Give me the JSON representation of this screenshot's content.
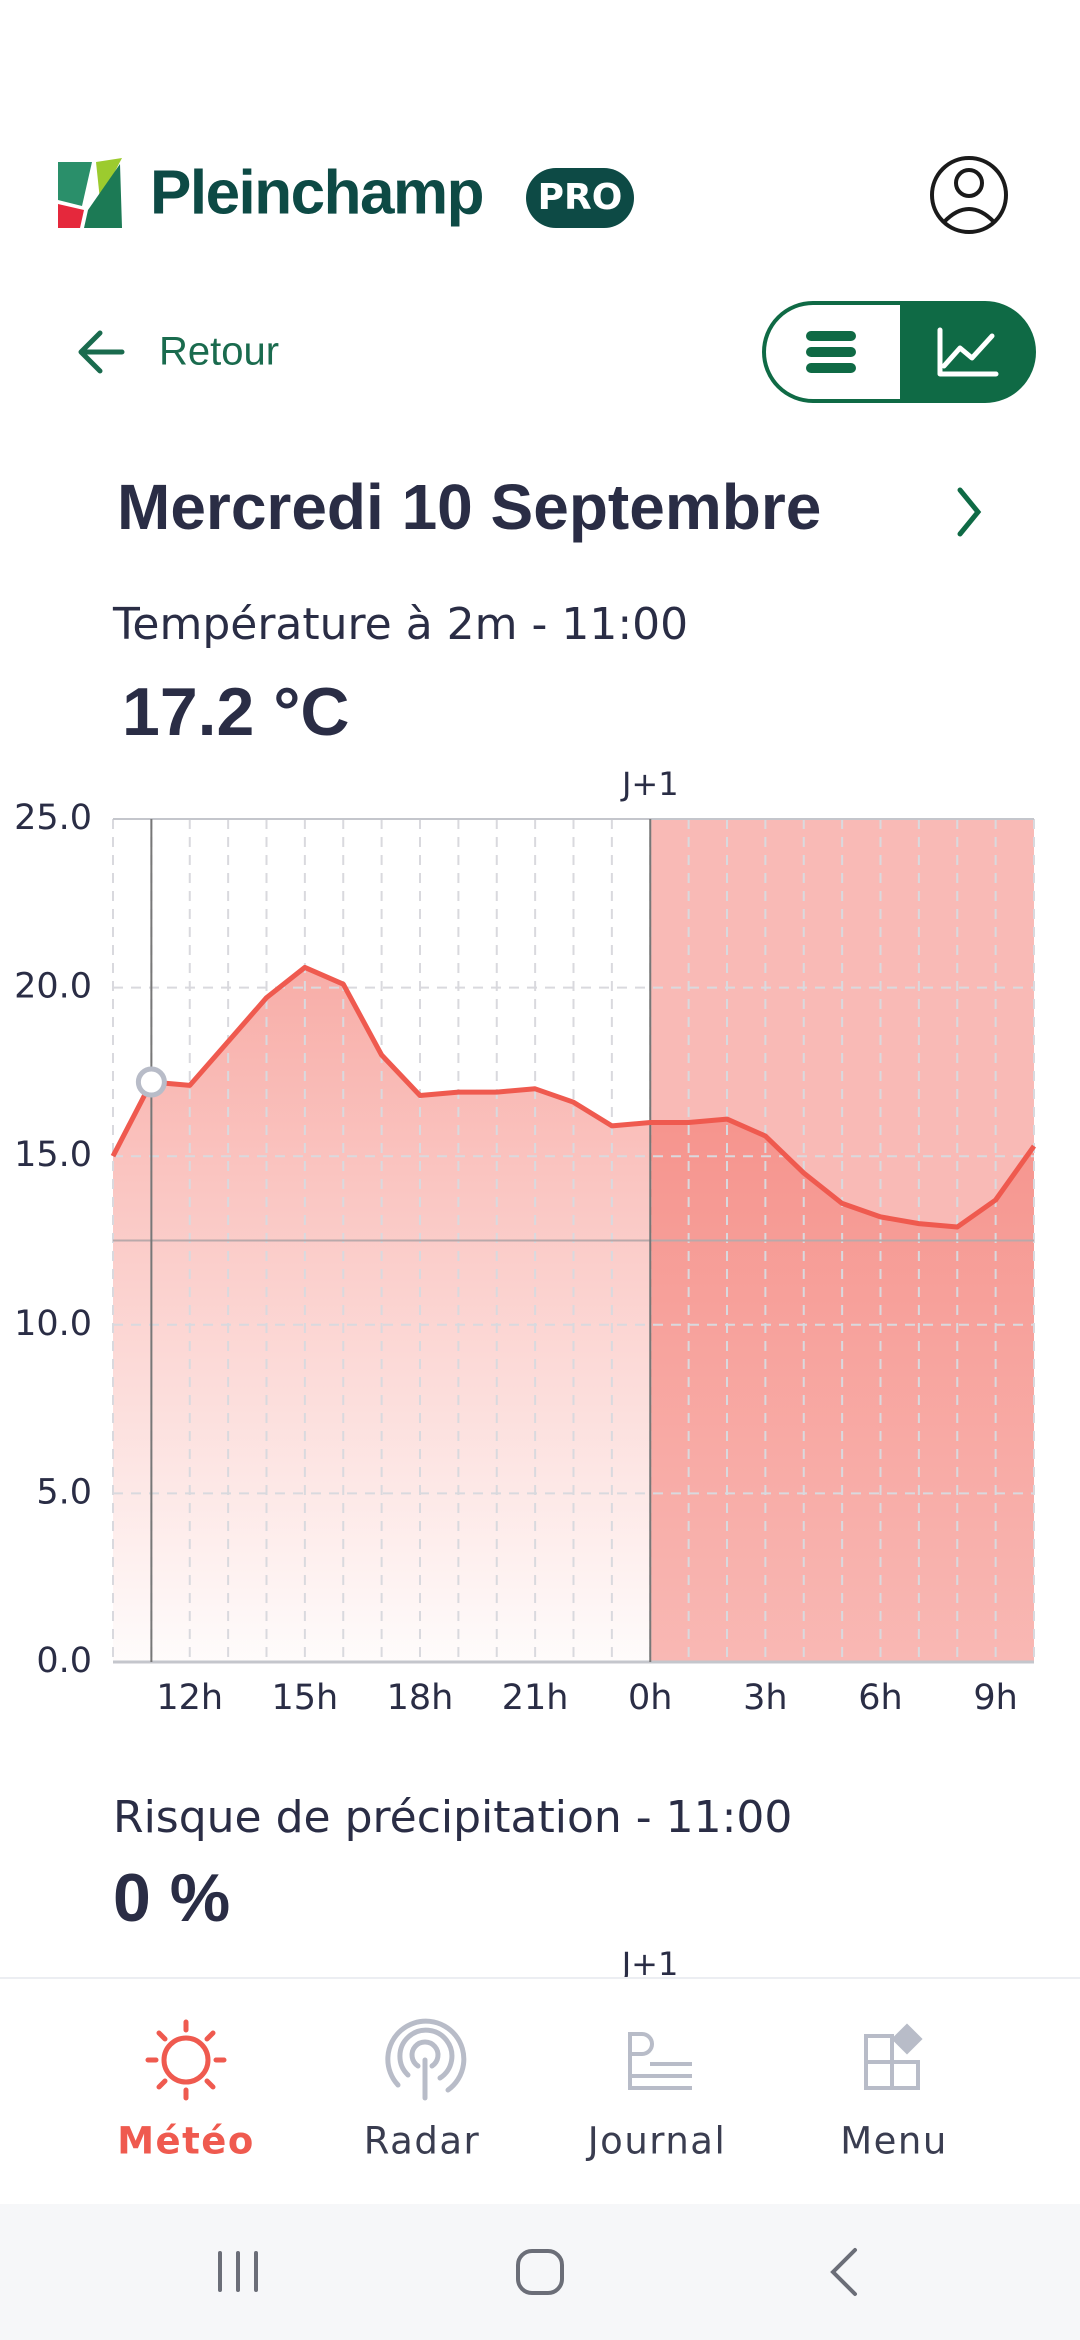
{
  "header": {
    "brand": "Pleinchamp",
    "badge": "PRO"
  },
  "nav": {
    "back": "Retour"
  },
  "date": "Mercredi 10 Septembre",
  "temperature": {
    "label": "Température à 2m - 11:00",
    "value": "17.2 °C"
  },
  "chart_data": {
    "type": "line",
    "annotation": "J+1",
    "x": [
      10,
      11,
      12,
      13,
      14,
      15,
      16,
      17,
      18,
      19,
      20,
      21,
      22,
      23,
      24,
      25,
      26,
      27,
      28,
      29,
      30,
      31,
      32,
      33,
      34
    ],
    "series": [
      {
        "color": "#ef5a4f",
        "values": [
          15.0,
          17.2,
          17.1,
          18.4,
          19.7,
          20.6,
          20.1,
          18.0,
          16.8,
          16.9,
          16.9,
          17.0,
          16.6,
          15.9,
          16.0,
          16.0,
          16.1,
          15.6,
          14.5,
          13.6,
          13.2,
          13.0,
          12.9,
          13.7,
          15.3
        ]
      }
    ],
    "xlim": [
      10,
      34
    ],
    "xticks": [
      {
        "value": 12,
        "label": "12h"
      },
      {
        "value": 15,
        "label": "15h"
      },
      {
        "value": 18,
        "label": "18h"
      },
      {
        "value": 21,
        "label": "21h"
      },
      {
        "value": 24,
        "label": "0h"
      },
      {
        "value": 27,
        "label": "3h"
      },
      {
        "value": 30,
        "label": "6h"
      },
      {
        "value": 33,
        "label": "9h"
      }
    ],
    "ylim": [
      0,
      25
    ],
    "yticks": [
      {
        "value": 0,
        "label": "0.0"
      },
      {
        "value": 5,
        "label": "5.0"
      },
      {
        "value": 10,
        "label": "10.0"
      },
      {
        "value": 15,
        "label": "15.0"
      },
      {
        "value": 20,
        "label": "20.0"
      },
      {
        "value": 25,
        "label": "25.0"
      }
    ],
    "grid": true,
    "cursor_x": 11,
    "next_day_start": 24,
    "hline": 12.5
  },
  "precipitation": {
    "label": "Risque de précipitation - 11:00",
    "value": "0 %",
    "annotation": "J+1"
  },
  "tabs": [
    {
      "label": "Météo",
      "active": true
    },
    {
      "label": "Radar",
      "active": false
    },
    {
      "label": "Journal",
      "active": false
    },
    {
      "label": "Menu",
      "active": false
    }
  ]
}
